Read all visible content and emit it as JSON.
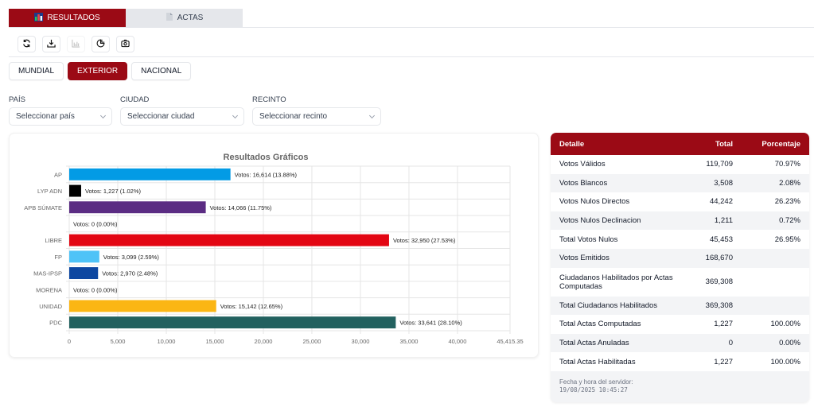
{
  "tabs": [
    {
      "label": "RESULTADOS",
      "icon": "bar-chart-icon",
      "active": true
    },
    {
      "label": "ACTAS",
      "icon": "document-icon",
      "active": false
    }
  ],
  "toolbar": [
    {
      "name": "refresh",
      "icon": "refresh-icon",
      "disabled": false
    },
    {
      "name": "download",
      "icon": "download-icon",
      "disabled": false
    },
    {
      "name": "bar-chart",
      "icon": "bar-chart-icon",
      "disabled": true
    },
    {
      "name": "pie-chart",
      "icon": "pie-chart-icon",
      "disabled": false
    },
    {
      "name": "screenshot",
      "icon": "camera-icon",
      "disabled": false
    }
  ],
  "scope": {
    "options": [
      "MUNDIAL",
      "EXTERIOR",
      "NACIONAL"
    ],
    "selected": "EXTERIOR"
  },
  "filters": [
    {
      "label": "PAÍS",
      "placeholder": "Seleccionar país"
    },
    {
      "label": "CIUDAD",
      "placeholder": "Seleccionar ciudad"
    },
    {
      "label": "RECINTO",
      "placeholder": "Seleccionar recinto"
    }
  ],
  "chart_data": {
    "type": "bar",
    "orientation": "horizontal",
    "title": "Resultados Gráficos",
    "xlabel": "",
    "ylabel": "",
    "categories": [
      "AP",
      "LYP ADN",
      "APB SÚMATE",
      "",
      "LIBRE",
      "FP",
      "MAS-IPSP",
      "MORENA",
      "UNIDAD",
      "PDC"
    ],
    "values": [
      16614,
      1227,
      14066,
      0,
      32950,
      3099,
      2970,
      0,
      15142,
      33641
    ],
    "labels": [
      "Votos: 16,614 (13.88%)",
      "Votos: 1,227 (1.02%)",
      "Votos: 14,066 (11.75%)",
      "Votos: 0 (0.00%)",
      "Votos: 32,950 (27.53%)",
      "Votos: 3,099 (2.59%)",
      "Votos: 2,970 (2.48%)",
      "Votos: 0 (0.00%)",
      "Votos: 15,142 (12.65%)",
      "Votos: 33,641 (28.10%)"
    ],
    "colors": [
      "#039be5",
      "#000000",
      "#5b2c83",
      "#cccccc",
      "#e30613",
      "#4fc3f7",
      "#0d47a1",
      "#8b0000",
      "#fbb614",
      "#22615f"
    ],
    "xlim": [
      0,
      45415.35
    ],
    "xticks": [
      0,
      5000,
      10000,
      15000,
      20000,
      25000,
      30000,
      35000,
      40000,
      45415.35
    ],
    "xtick_labels": [
      "0",
      "5,000",
      "10,000",
      "15,000",
      "20,000",
      "25,000",
      "30,000",
      "35,000",
      "40,000",
      "45,415.35"
    ],
    "grid": true,
    "legend": "none"
  },
  "table": {
    "headers": [
      "Detalle",
      "Total",
      "Porcentaje"
    ],
    "rows": [
      {
        "detalle": "Votos Válidos",
        "total": "119,709",
        "pct": "70.97%"
      },
      {
        "detalle": "Votos Blancos",
        "total": "3,508",
        "pct": "2.08%"
      },
      {
        "detalle": "Votos Nulos Directos",
        "total": "44,242",
        "pct": "26.23%"
      },
      {
        "detalle": "Votos Nulos Declinacion",
        "total": "1,211",
        "pct": "0.72%"
      },
      {
        "detalle": "Total Votos Nulos",
        "total": "45,453",
        "pct": "26.95%"
      },
      {
        "detalle": "Votos Emitidos",
        "total": "168,670",
        "pct": ""
      },
      {
        "detalle": "Ciudadanos Habilitados por Actas Computadas",
        "total": "369,308",
        "pct": ""
      },
      {
        "detalle": "Total Ciudadanos Habilitados",
        "total": "369,308",
        "pct": ""
      },
      {
        "detalle": "Total Actas Computadas",
        "total": "1,227",
        "pct": "100.00%"
      },
      {
        "detalle": "Total Actas Anuladas",
        "total": "0",
        "pct": "0.00%"
      },
      {
        "detalle": "Total Actas Habilitadas",
        "total": "1,227",
        "pct": "100.00%"
      }
    ],
    "server_label": "Fecha y hora del servidor:",
    "server_time": "19/08/2025 10:45:27"
  },
  "colors": {
    "accent": "#9b0a15"
  }
}
